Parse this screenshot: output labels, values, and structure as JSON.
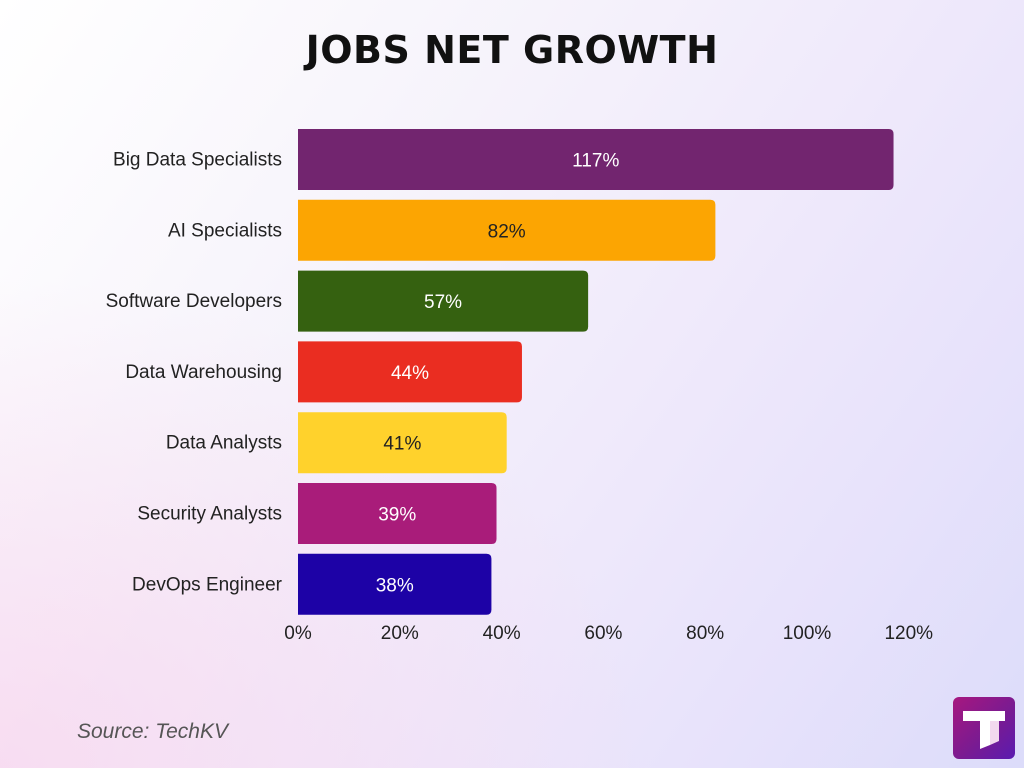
{
  "chart_data": {
    "type": "bar",
    "orientation": "horizontal",
    "title": "JOBS NET GROWTH",
    "categories": [
      "Big Data Specialists",
      "AI Specialists",
      "Software Developers",
      "Data Warehousing",
      "Data Analysts",
      "Security Analysts",
      "DevOps Engineer"
    ],
    "values": [
      117,
      82,
      57,
      44,
      41,
      39,
      38
    ],
    "data_labels": [
      "117%",
      "82%",
      "57%",
      "44%",
      "41%",
      "39%",
      "38%"
    ],
    "colors": [
      "#72256f",
      "#fca502",
      "#356110",
      "#ea2d21",
      "#ffd22c",
      "#a91c7a",
      "#1d02a6"
    ],
    "label_colors": [
      "#ffffff",
      "#222222",
      "#ffffff",
      "#ffffff",
      "#222222",
      "#ffffff",
      "#ffffff"
    ],
    "xticks": [
      0,
      20,
      40,
      60,
      80,
      100,
      120
    ],
    "xtick_labels": [
      "0%",
      "20%",
      "40%",
      "60%",
      "80%",
      "100%",
      "120%"
    ],
    "xlim": [
      0,
      120
    ],
    "xlabel": "",
    "ylabel": "",
    "grid": false,
    "legend": "none"
  },
  "source": "Source: TechKV",
  "logo_icon": "techkv-t-logo-icon"
}
